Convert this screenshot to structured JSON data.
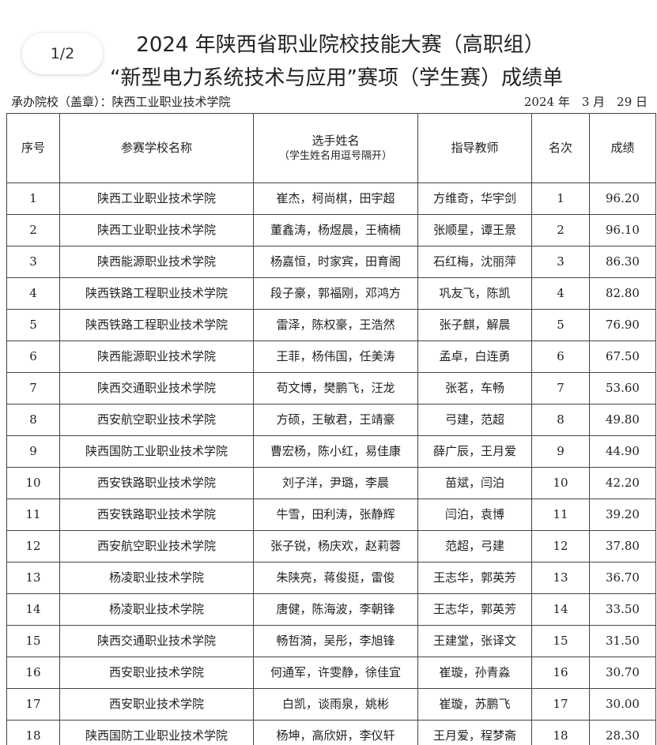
{
  "page_indicator": "1/2",
  "header": {
    "title_line1": "2024 年陕西省职业院校技能大赛（高职组）",
    "title_line2": "“新型电力系统技术与应用”赛项（学生赛）成绩单",
    "host": "承办院校（盖章）：陕西工业职业技术学院",
    "date": "2024 年　3 月　29 日"
  },
  "table": {
    "columns": [
      "序号",
      "参赛学校名称",
      "选手姓名",
      "指导教师",
      "名次",
      "成绩"
    ],
    "column_note": "（学生姓名用逗号隔开）",
    "rows": [
      [
        "1",
        "陕西工业职业技术学院",
        "崔杰，柯尚棋，田宇超",
        "方维奇，华宇剑",
        "1",
        "96.20"
      ],
      [
        "2",
        "陕西工业职业技术学院",
        "董鑫涛，杨煜晨，王楠楠",
        "张顺星，谭王景",
        "2",
        "96.10"
      ],
      [
        "3",
        "陕西能源职业技术学院",
        "杨嘉恒，时家宾，田育阁",
        "石红梅，沈丽萍",
        "3",
        "86.30"
      ],
      [
        "4",
        "陕西铁路工程职业技术学院",
        "段子豪，郭福刚，邓鸿方",
        "巩友飞，陈凯",
        "4",
        "82.80"
      ],
      [
        "5",
        "陕西铁路工程职业技术学院",
        "雷泽，陈权豪，王浩然",
        "张子麒，解晨",
        "5",
        "76.90"
      ],
      [
        "6",
        "陕西能源职业技术学院",
        "王菲，杨伟国，任美涛",
        "孟卓，白连勇",
        "6",
        "67.50"
      ],
      [
        "7",
        "陕西交通职业技术学院",
        "苟文博，樊鹏飞，汪龙",
        "张茗，车畅",
        "7",
        "53.60"
      ],
      [
        "8",
        "西安航空职业技术学院",
        "方硕，王敏君，王靖豪",
        "弓建，范超",
        "8",
        "49.80"
      ],
      [
        "9",
        "陕西国防工业职业技术学院",
        "曹宏杨，陈小红，易佳康",
        "薛广辰，王月爱",
        "9",
        "44.90"
      ],
      [
        "10",
        "西安铁路职业技术学院",
        "刘子洋，尹璐，李晨",
        "苗斌，闫泊",
        "10",
        "42.20"
      ],
      [
        "11",
        "西安铁路职业技术学院",
        "牛雪，田利涛，张静辉",
        "闫泊，袁博",
        "11",
        "39.20"
      ],
      [
        "12",
        "西安航空职业技术学院",
        "张子锐，杨庆欢，赵莉蓉",
        "范超，弓建",
        "12",
        "37.80"
      ],
      [
        "13",
        "杨凌职业技术学院",
        "朱陕亮，蒋俊挺，雷俊",
        "王志华，郭英芳",
        "13",
        "36.70"
      ],
      [
        "14",
        "杨凌职业技术学院",
        "唐健，陈海波，李朝锋",
        "王志华，郭英芳",
        "14",
        "33.50"
      ],
      [
        "15",
        "陕西交通职业技术学院",
        "畅哲漪，吴彤，李旭锋",
        "王建堂，张译文",
        "15",
        "31.50"
      ],
      [
        "16",
        "西安职业技术学院",
        "何通军，许雯静，徐佳宜",
        "崔璇，孙青淼",
        "16",
        "30.70"
      ],
      [
        "17",
        "西安职业技术学院",
        "白凯，谈雨泉，姚彬",
        "崔璇，苏鹏飞",
        "17",
        "30.00"
      ],
      [
        "18",
        "陕西国防工业职业技术学院",
        "杨坤，高欣妍，李仪轩",
        "王月爱，程梦斋",
        "18",
        "28.30"
      ]
    ]
  }
}
